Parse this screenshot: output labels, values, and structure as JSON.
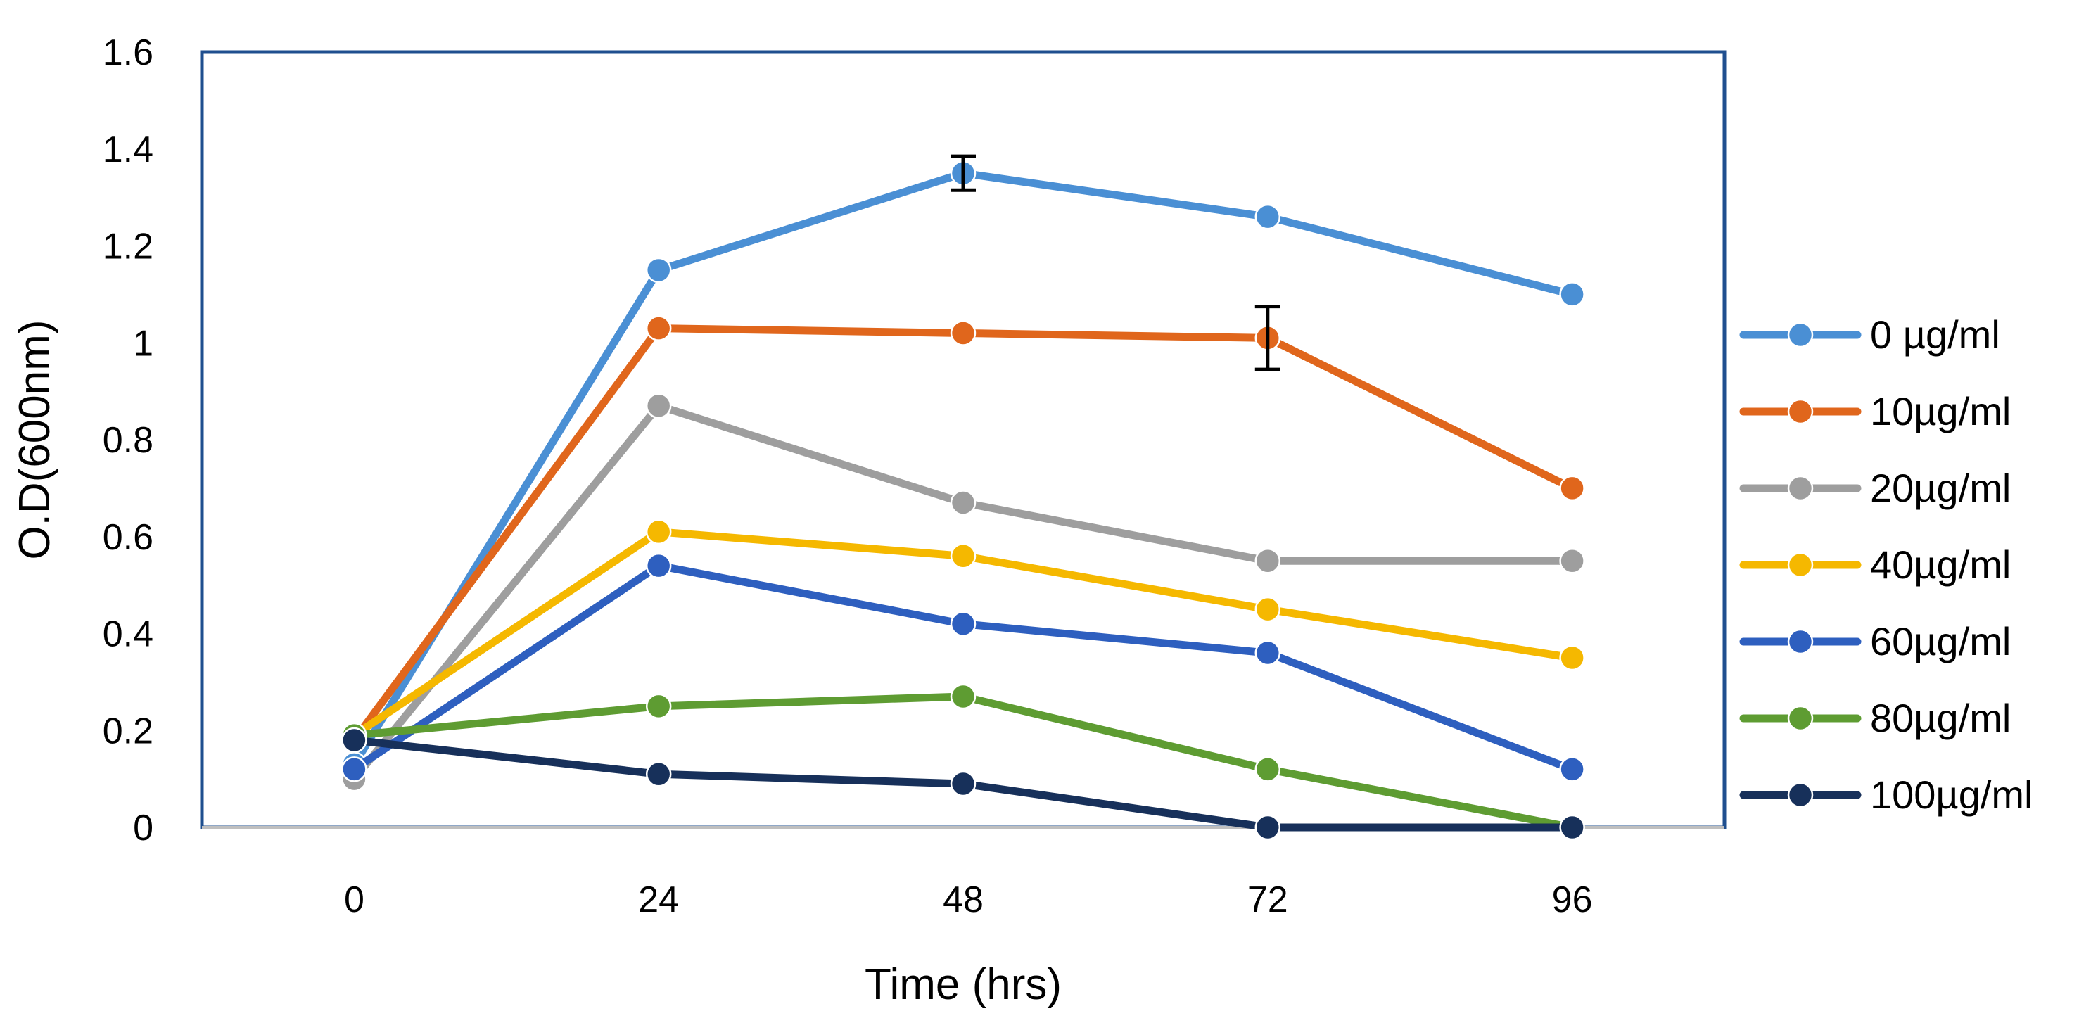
{
  "chart_data": {
    "type": "line",
    "title": "",
    "xlabel": "Time (hrs)",
    "ylabel": "O.D(600nm)",
    "categories": [
      "0",
      "24",
      "48",
      "72",
      "96"
    ],
    "ylim": [
      0,
      1.6
    ],
    "yticks": [
      "0",
      "0.2",
      "0.4",
      "0.6",
      "0.8",
      "1",
      "1.2",
      "1.4",
      "1.6"
    ],
    "legend_position": "right",
    "series": [
      {
        "name": "0 µg/ml",
        "color": "#4a8fd4",
        "values": [
          0.13,
          1.15,
          1.35,
          1.26,
          1.1
        ],
        "error_bars": [
          null,
          null,
          0.035,
          null,
          null
        ]
      },
      {
        "name": "10µg/ml",
        "color": "#e0661c",
        "values": [
          0.18,
          1.03,
          1.02,
          1.01,
          0.7
        ],
        "error_bars": [
          null,
          null,
          null,
          0.065,
          null
        ]
      },
      {
        "name": "20µg/ml",
        "color": "#9e9e9e",
        "values": [
          0.1,
          0.87,
          0.67,
          0.55,
          0.55
        ],
        "error_bars": [
          null,
          null,
          null,
          null,
          null
        ]
      },
      {
        "name": "40µg/ml",
        "color": "#f5b800",
        "values": [
          0.19,
          0.61,
          0.56,
          0.45,
          0.35
        ],
        "error_bars": [
          null,
          null,
          null,
          null,
          null
        ]
      },
      {
        "name": "60µg/ml",
        "color": "#2e5fbf",
        "values": [
          0.12,
          0.54,
          0.42,
          0.36,
          0.12
        ],
        "error_bars": [
          null,
          null,
          null,
          null,
          null
        ]
      },
      {
        "name": "80µg/ml",
        "color": "#5e9c32",
        "values": [
          0.19,
          0.25,
          0.27,
          0.12,
          0.0
        ],
        "error_bars": [
          null,
          null,
          null,
          null,
          null
        ]
      },
      {
        "name": "100µg/ml",
        "color": "#17305a",
        "values": [
          0.18,
          0.11,
          0.09,
          0.0,
          0.0
        ],
        "error_bars": [
          null,
          null,
          null,
          null,
          null
        ]
      }
    ]
  }
}
